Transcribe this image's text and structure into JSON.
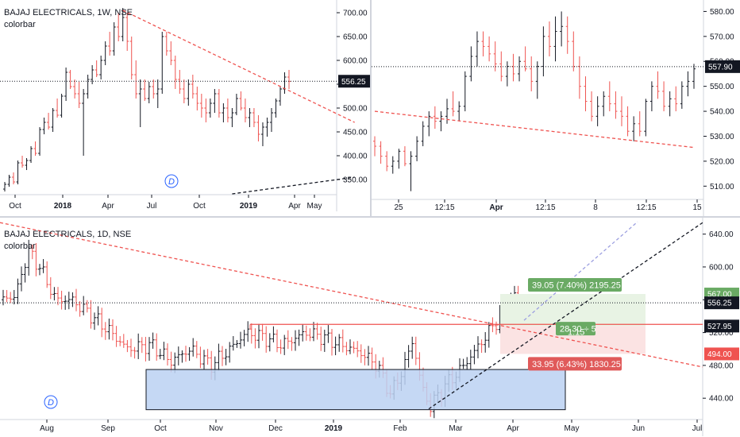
{
  "colors": {
    "up": "#131722",
    "down": "#ef5350",
    "trend_red": "#ef5350",
    "trend_black": "#131722",
    "trend_purple": "#9c9fe0",
    "hline": "#131722",
    "grid": "#e0e3eb",
    "box_blue_fill": "#bbd1f2",
    "box_blue_stroke": "#131722",
    "target_green": "#6aaa64",
    "stop_red": "#e05a5a",
    "profit_zone": "#e8f3e4",
    "loss_zone": "#fbe3e3",
    "tag_dark": "#131722",
    "tag_red": "#ef5350",
    "badge": "#2962ff"
  },
  "panes": [
    {
      "id": "top-left",
      "symbol": "BAJAJ ELECTRICALS, 1W, NSE",
      "style_label": "colorbar",
      "price_axis": {
        "min": 320,
        "max": 710,
        "ticks": [
          "700.00",
          "650.00",
          "600.00",
          "550.00",
          "500.00",
          "450.00",
          "400.00",
          "350.00"
        ],
        "tick_values": [
          700,
          650,
          600,
          550,
          500,
          450,
          400,
          350
        ]
      },
      "time_axis": {
        "labels": [
          "Oct",
          "2018",
          "Apr",
          "Jul",
          "Oct",
          "2019",
          "Apr",
          "May"
        ],
        "bold": [
          false,
          true,
          false,
          false,
          false,
          true,
          false,
          false
        ]
      },
      "last_price": "556.25",
      "dividend_badge": "D",
      "candles": [
        [
          330,
          345,
          325,
          340
        ],
        [
          340,
          360,
          335,
          355
        ],
        [
          355,
          365,
          340,
          345
        ],
        [
          345,
          390,
          340,
          385
        ],
        [
          385,
          400,
          375,
          380
        ],
        [
          380,
          395,
          370,
          390
        ],
        [
          390,
          420,
          385,
          415
        ],
        [
          415,
          430,
          400,
          405
        ],
        [
          405,
          460,
          400,
          455
        ],
        [
          455,
          480,
          445,
          470
        ],
        [
          470,
          490,
          455,
          460
        ],
        [
          460,
          500,
          450,
          495
        ],
        [
          495,
          520,
          480,
          485
        ],
        [
          485,
          530,
          480,
          525
        ],
        [
          525,
          585,
          515,
          575
        ],
        [
          575,
          580,
          540,
          545
        ],
        [
          545,
          560,
          520,
          530
        ],
        [
          530,
          555,
          500,
          510
        ],
        [
          510,
          540,
          400,
          530
        ],
        [
          530,
          570,
          520,
          560
        ],
        [
          560,
          590,
          550,
          580
        ],
        [
          580,
          600,
          565,
          570
        ],
        [
          570,
          610,
          560,
          600
        ],
        [
          600,
          640,
          590,
          630
        ],
        [
          630,
          660,
          610,
          620
        ],
        [
          620,
          680,
          610,
          670
        ],
        [
          670,
          700,
          640,
          650
        ],
        [
          650,
          710,
          640,
          690
        ],
        [
          690,
          700,
          620,
          640
        ],
        [
          640,
          650,
          560,
          570
        ],
        [
          570,
          600,
          520,
          530
        ],
        [
          530,
          560,
          460,
          540
        ],
        [
          540,
          560,
          515,
          520
        ],
        [
          520,
          555,
          510,
          545
        ],
        [
          545,
          560,
          520,
          530
        ],
        [
          530,
          560,
          500,
          540
        ],
        [
          540,
          660,
          530,
          650
        ],
        [
          650,
          660,
          610,
          620
        ],
        [
          620,
          640,
          590,
          600
        ],
        [
          600,
          610,
          540,
          560
        ],
        [
          560,
          580,
          530,
          540
        ],
        [
          540,
          560,
          510,
          520
        ],
        [
          520,
          560,
          505,
          550
        ],
        [
          550,
          570,
          520,
          530
        ],
        [
          530,
          545,
          495,
          510
        ],
        [
          510,
          530,
          480,
          500
        ],
        [
          500,
          520,
          470,
          490
        ],
        [
          490,
          520,
          480,
          510
        ],
        [
          510,
          540,
          490,
          530
        ],
        [
          530,
          540,
          480,
          490
        ],
        [
          490,
          510,
          470,
          500
        ],
        [
          500,
          520,
          470,
          480
        ],
        [
          480,
          500,
          460,
          490
        ],
        [
          490,
          530,
          485,
          520
        ],
        [
          520,
          535,
          495,
          500
        ],
        [
          500,
          520,
          470,
          480
        ],
        [
          480,
          500,
          460,
          490
        ],
        [
          490,
          500,
          460,
          470
        ],
        [
          470,
          485,
          430,
          445
        ],
        [
          445,
          470,
          420,
          460
        ],
        [
          460,
          480,
          440,
          470
        ],
        [
          470,
          500,
          450,
          490
        ],
        [
          490,
          520,
          480,
          515
        ],
        [
          515,
          545,
          505,
          540
        ],
        [
          540,
          575,
          530,
          565
        ],
        [
          565,
          580,
          540,
          556
        ]
      ],
      "trendlines": [
        {
          "color": "trend_red",
          "dash": true,
          "x1": 27,
          "y1": 705,
          "x2": 80,
          "y2": 470
        },
        {
          "color": "trend_black",
          "dash": true,
          "x1": 52,
          "y1": 320,
          "x2": 80,
          "y2": 355
        }
      ],
      "hlines": [
        {
          "price": 556.25,
          "dotted": true
        }
      ]
    },
    {
      "id": "top-right",
      "symbol": "",
      "style_label": "",
      "price_axis": {
        "min": 505,
        "max": 583,
        "ticks": [
          "580.00",
          "570.00",
          "560.00",
          "550.00",
          "540.00",
          "530.00",
          "520.00",
          "510.00"
        ],
        "tick_values": [
          580,
          570,
          560,
          550,
          540,
          530,
          520,
          510
        ]
      },
      "time_axis": {
        "labels": [
          "25",
          "12:15",
          "Apr",
          "12:15",
          "8",
          "12:15",
          "15"
        ],
        "bold": [
          false,
          false,
          true,
          false,
          false,
          false,
          false
        ]
      },
      "last_price": "557.90",
      "candles": [
        [
          528,
          530,
          522,
          526
        ],
        [
          526,
          528,
          519,
          522
        ],
        [
          522,
          524,
          516,
          518
        ],
        [
          518,
          522,
          515,
          520
        ],
        [
          520,
          525,
          517,
          524
        ],
        [
          524,
          526,
          518,
          519
        ],
        [
          519,
          524,
          508,
          522
        ],
        [
          522,
          530,
          520,
          528
        ],
        [
          528,
          536,
          526,
          534
        ],
        [
          534,
          540,
          530,
          538
        ],
        [
          538,
          542,
          533,
          536
        ],
        [
          536,
          540,
          532,
          538
        ],
        [
          538,
          545,
          535,
          541
        ],
        [
          541,
          548,
          538,
          540
        ],
        [
          540,
          544,
          536,
          542
        ],
        [
          542,
          556,
          540,
          554
        ],
        [
          554,
          566,
          552,
          562
        ],
        [
          562,
          572,
          558,
          568
        ],
        [
          568,
          572,
          562,
          566
        ],
        [
          566,
          570,
          560,
          563
        ],
        [
          563,
          568,
          556,
          559
        ],
        [
          559,
          564,
          552,
          554
        ],
        [
          554,
          560,
          550,
          558
        ],
        [
          558,
          563,
          552,
          555
        ],
        [
          555,
          562,
          552,
          560
        ],
        [
          560,
          566,
          556,
          557
        ],
        [
          557,
          562,
          548,
          552
        ],
        [
          552,
          560,
          545,
          558
        ],
        [
          558,
          574,
          554,
          570
        ],
        [
          570,
          576,
          562,
          566
        ],
        [
          566,
          578,
          560,
          572
        ],
        [
          572,
          580,
          566,
          574
        ],
        [
          574,
          578,
          563,
          568
        ],
        [
          568,
          572,
          556,
          558
        ],
        [
          558,
          562,
          545,
          550
        ],
        [
          550,
          554,
          540,
          544
        ],
        [
          544,
          548,
          536,
          538
        ],
        [
          538,
          546,
          534,
          542
        ],
        [
          542,
          548,
          538,
          546
        ],
        [
          546,
          552,
          540,
          543
        ],
        [
          543,
          548,
          537,
          540
        ],
        [
          540,
          546,
          534,
          538
        ],
        [
          538,
          542,
          530,
          532
        ],
        [
          532,
          538,
          528,
          535
        ],
        [
          535,
          540,
          530,
          532
        ],
        [
          532,
          545,
          530,
          544
        ],
        [
          544,
          552,
          540,
          550
        ],
        [
          550,
          556,
          545,
          548
        ],
        [
          548,
          552,
          540,
          542
        ],
        [
          542,
          548,
          538,
          545
        ],
        [
          545,
          550,
          540,
          543
        ],
        [
          543,
          552,
          541,
          550
        ],
        [
          550,
          556,
          546,
          552
        ],
        [
          552,
          559,
          549,
          557
        ]
      ],
      "trendlines": [
        {
          "color": "trend_red",
          "dash": true,
          "x1": 0,
          "y1": 540,
          "x2": 53,
          "y2": 525.5
        }
      ],
      "hlines": [
        {
          "price": 557.9,
          "dotted": true
        }
      ]
    },
    {
      "id": "bottom",
      "symbol": "BAJAJ ELECTRICALS, 1D, NSE",
      "style_label": "colorbar",
      "price_axis": {
        "min": 415,
        "max": 660,
        "ticks": [
          "640.00",
          "600.00",
          "560.00",
          "520.00",
          "480.00",
          "440.00"
        ],
        "tick_values": [
          640,
          600,
          560,
          520,
          480,
          440
        ]
      },
      "time_axis": {
        "labels": [
          "Aug",
          "Sep",
          "Oct",
          "Nov",
          "Dec",
          "2019",
          "Feb",
          "Mar",
          "Apr",
          "May",
          "Jun",
          "Jul"
        ],
        "bold": [
          false,
          false,
          false,
          false,
          false,
          true,
          false,
          false,
          false,
          false,
          false,
          false
        ]
      },
      "price_tags": [
        {
          "price": 567.0,
          "label": "567.00",
          "style": "target"
        },
        {
          "price": 556.25,
          "label": "556.25",
          "style": "dark"
        },
        {
          "price": 527.95,
          "label": "527.95",
          "style": "dark"
        },
        {
          "price": 494.0,
          "label": "494.00",
          "style": "red"
        }
      ],
      "dividend_badge": "D",
      "annotations": {
        "target_label": "39.05 (7.40%) 2195.25",
        "stop_label": "33.95 (6.43%) 1830.25",
        "risk_label_1": "28.30 ÷ 5",
        "risk_label_2": "1.15"
      },
      "candles_seed": "daily"
    }
  ],
  "chart_data": [
    {
      "type": "candlestick",
      "title": "BAJAJ ELECTRICALS, 1W, NSE",
      "style": "colorbar",
      "x_labels": [
        "Oct",
        "2018",
        "Apr",
        "Jul",
        "Oct",
        "2019",
        "Apr",
        "May"
      ],
      "ylim": [
        320,
        710
      ],
      "last_price": 556.25
    },
    {
      "type": "candlestick",
      "title": "",
      "x_labels": [
        "25",
        "12:15",
        "Apr",
        "12:15",
        "8",
        "12:15",
        "15"
      ],
      "ylim": [
        505,
        583
      ],
      "last_price": 557.9
    },
    {
      "type": "candlestick",
      "title": "BAJAJ ELECTRICALS, 1D, NSE",
      "style": "colorbar",
      "x_labels": [
        "Aug",
        "Sep",
        "Oct",
        "Nov",
        "Dec",
        "2019",
        "Feb",
        "Mar",
        "Apr",
        "May",
        "Jun",
        "Jul"
      ],
      "ylim": [
        415,
        660
      ],
      "price_tags": [
        567.0,
        556.25,
        527.95,
        494.0
      ],
      "annotations": [
        "39.05 (7.40%) 2195.25",
        "33.95 (6.43%) 1830.25",
        "28.30 ÷ 5",
        "1.15"
      ]
    }
  ]
}
